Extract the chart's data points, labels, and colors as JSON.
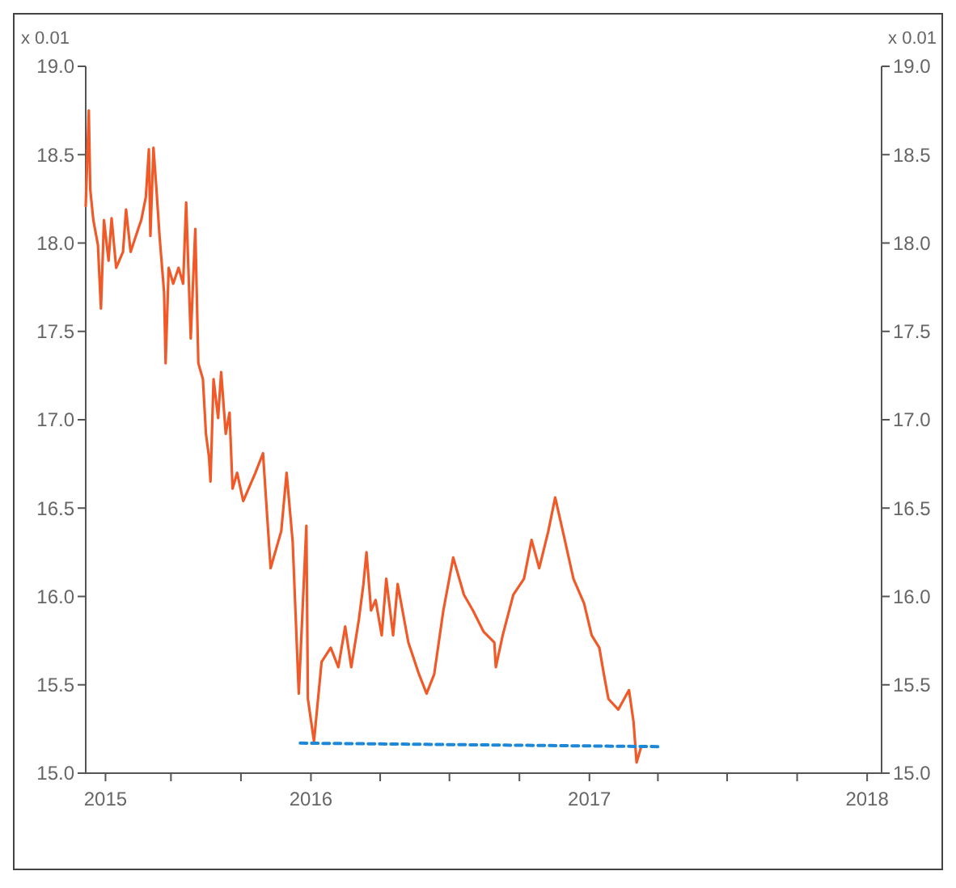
{
  "chart_data": {
    "type": "line",
    "ylabel": "x 0.01",
    "y2label": "x 0.01",
    "xlim": [
      "2015-03-11",
      "2018-01-20"
    ],
    "xticks": [
      {
        "value": "2015-04-06",
        "label": "2015"
      },
      {
        "value": "2015-07-01",
        "label": null
      },
      {
        "value": "2015-10-01",
        "label": null
      },
      {
        "value": "2016-01-01",
        "label": "2016"
      },
      {
        "value": "2016-04-01",
        "label": null
      },
      {
        "value": "2016-07-01",
        "label": null
      },
      {
        "value": "2016-10-01",
        "label": null
      },
      {
        "value": "2017-01-01",
        "label": "2017"
      },
      {
        "value": "2017-04-01",
        "label": null
      },
      {
        "value": "2017-07-01",
        "label": null
      },
      {
        "value": "2017-10-01",
        "label": null
      },
      {
        "value": "2018-01-01",
        "label": "2018"
      }
    ],
    "ylim": [
      15,
      19
    ],
    "yticks": [
      {
        "value": 15,
        "label": "15.0"
      },
      15.5,
      {
        "value": 16,
        "label": "16.0"
      },
      16.5,
      {
        "value": 17,
        "label": "17.0"
      },
      17.5,
      {
        "value": 18,
        "label": "18.0"
      },
      18.5,
      {
        "value": 19,
        "label": "19.0"
      }
    ],
    "y2lim": [
      15,
      19
    ],
    "y2ticks": [
      {
        "value": 15,
        "label": "15.0"
      },
      15.5,
      {
        "value": 16,
        "label": "16.0"
      },
      16.5,
      {
        "value": 17,
        "label": "17.0"
      },
      17.5,
      {
        "value": 18,
        "label": "18.0"
      },
      18.5,
      {
        "value": 19,
        "label": "19.0"
      }
    ],
    "grid": false,
    "marker": "none",
    "series": [
      {
        "color": "#f05a28",
        "line_style": "solid",
        "x": [
          "2015-03-11",
          "2015-03-15",
          "2015-03-17",
          "2015-03-21",
          "2015-03-27",
          "2015-03-31",
          "2015-04-04",
          "2015-04-10",
          "2015-04-14",
          "2015-04-20",
          "2015-04-29",
          "2015-05-03",
          "2015-05-09",
          "2015-05-19",
          "2015-05-23",
          "2015-05-29",
          "2015-06-02",
          "2015-06-04",
          "2015-06-08",
          "2015-06-12",
          "2015-06-16",
          "2015-06-22",
          "2015-06-24",
          "2015-06-28",
          "2015-07-04",
          "2015-07-11",
          "2015-07-17",
          "2015-07-21",
          "2015-07-27",
          "2015-08-02",
          "2015-08-06",
          "2015-08-12",
          "2015-08-16",
          "2015-08-20",
          "2015-08-22",
          "2015-08-26",
          "2015-09-01",
          "2015-09-05",
          "2015-09-11",
          "2015-09-16",
          "2015-09-20",
          "2015-09-26",
          "2015-10-04",
          "2015-10-20",
          "2015-10-30",
          "2015-11-09",
          "2015-11-23",
          "2015-11-30",
          "2015-12-08",
          "2015-12-16",
          "2015-12-26",
          "2015-12-28",
          "2016-01-05",
          "2016-01-15",
          "2016-01-27",
          "2016-02-06",
          "2016-02-15",
          "2016-02-23",
          "2016-03-04",
          "2016-03-10",
          "2016-03-14",
          "2016-03-20",
          "2016-03-26",
          "2016-04-03",
          "2016-04-09",
          "2016-04-18",
          "2016-04-24",
          "2016-05-08",
          "2016-05-22",
          "2016-06-01",
          "2016-06-11",
          "2016-06-23",
          "2016-07-06",
          "2016-07-20",
          "2016-08-01",
          "2016-08-15",
          "2016-08-29",
          "2016-08-31",
          "2016-09-09",
          "2016-09-23",
          "2016-10-07",
          "2016-10-17",
          "2016-10-27",
          "2016-11-08",
          "2016-11-17",
          "2016-11-27",
          "2016-12-11",
          "2016-12-25",
          "2017-01-04",
          "2017-01-14",
          "2017-01-20",
          "2017-01-26",
          "2017-02-08",
          "2017-02-22",
          "2017-02-28",
          "2017-03-04",
          "2017-03-10"
        ],
        "values": [
          18.21,
          18.75,
          18.3,
          18.13,
          17.99,
          17.63,
          18.13,
          17.9,
          18.14,
          17.86,
          17.95,
          18.19,
          17.95,
          18.08,
          18.13,
          18.26,
          18.53,
          18.04,
          18.54,
          18.3,
          18.04,
          17.72,
          17.32,
          17.86,
          17.77,
          17.86,
          17.77,
          18.23,
          17.46,
          18.08,
          17.32,
          17.23,
          16.92,
          16.79,
          16.65,
          17.23,
          17.01,
          17.27,
          16.92,
          17.04,
          16.61,
          16.7,
          16.54,
          16.7,
          16.81,
          16.16,
          16.37,
          16.7,
          16.31,
          15.45,
          16.4,
          15.42,
          15.18,
          15.63,
          15.71,
          15.6,
          15.83,
          15.6,
          15.87,
          16.07,
          16.25,
          15.92,
          15.98,
          15.78,
          16.1,
          15.78,
          16.07,
          15.74,
          15.56,
          15.45,
          15.56,
          15.92,
          16.22,
          16.01,
          15.92,
          15.8,
          15.74,
          15.6,
          15.78,
          16.01,
          16.1,
          16.32,
          16.16,
          16.37,
          16.56,
          16.37,
          16.1,
          15.96,
          15.78,
          15.71,
          15.56,
          15.42,
          15.36,
          15.47,
          15.29,
          15.06,
          15.15
        ]
      },
      {
        "color": "#1e88d8",
        "line_style": "dashed",
        "x": [
          "2015-12-18",
          "2017-04-06"
        ],
        "values": [
          15.17,
          15.15
        ]
      }
    ]
  }
}
